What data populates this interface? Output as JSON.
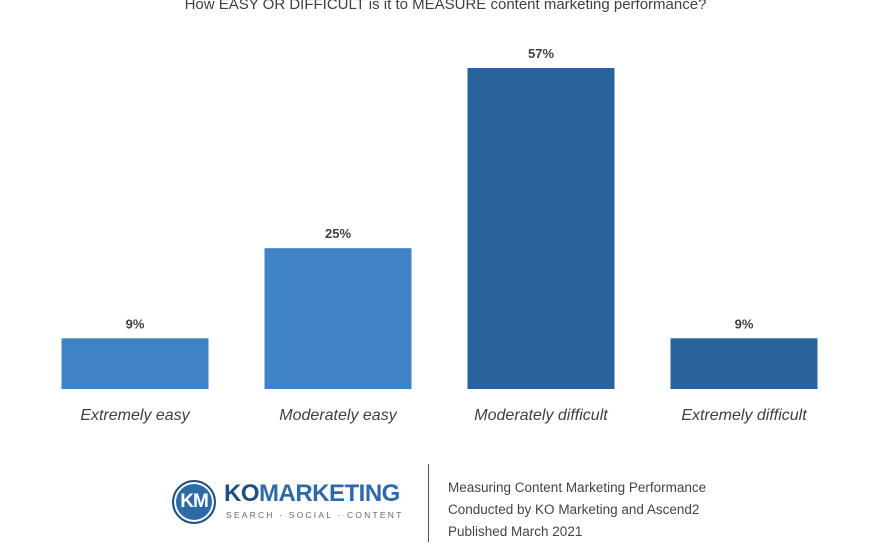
{
  "chart_data": {
    "type": "bar",
    "title": "How EASY OR DIFFICULT is it to MEASURE content marketing performance?",
    "categories": [
      "Extremely easy",
      "Moderately easy",
      "Moderately difficult",
      "Extremely difficult"
    ],
    "values": [
      9,
      25,
      57,
      9
    ],
    "value_labels": [
      "9%",
      "25%",
      "57%",
      "9%"
    ],
    "unit": "%",
    "ylim": [
      0,
      57
    ],
    "grid": false,
    "legend": "none",
    "colors": [
      "#3f83c6",
      "#3f83c6",
      "#28639c",
      "#28639c"
    ]
  },
  "footer": {
    "logo": {
      "monogram": "KM",
      "word_ko": "KO",
      "word_marketing": "MARKETING",
      "tagline": "SEARCH · SOCIAL · CONTENT"
    },
    "lines": [
      "Measuring Content Marketing Performance",
      "Conducted by KO Marketing and Ascend2",
      "Published March 2021"
    ]
  }
}
